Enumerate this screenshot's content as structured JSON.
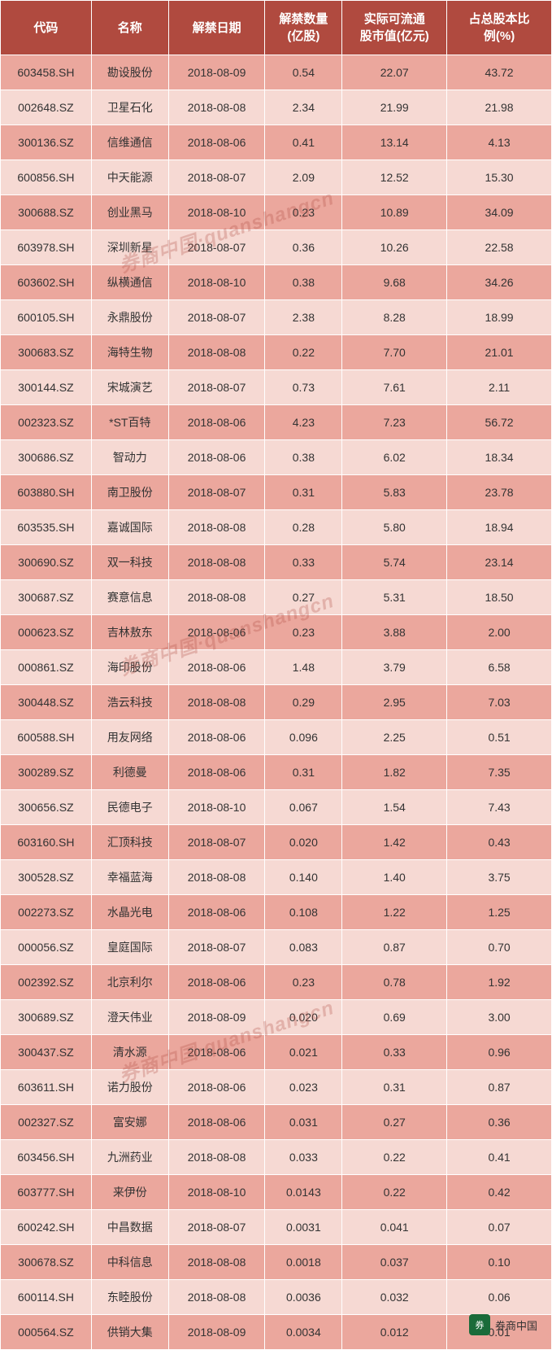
{
  "table": {
    "header_bg": "#b04a3f",
    "header_color": "#ffffff",
    "row_dark_bg": "#eba79d",
    "row_light_bg": "#f6d9d3",
    "columns": [
      {
        "key": "code",
        "label": "代码",
        "width": "16.5%"
      },
      {
        "key": "name",
        "label": "名称",
        "width": "14%"
      },
      {
        "key": "date",
        "label": "解禁日期",
        "width": "17.5%"
      },
      {
        "key": "qty",
        "label": "解禁数量\n(亿股)",
        "width": "14%"
      },
      {
        "key": "value",
        "label": "实际可流通\n股市值(亿元)",
        "width": "19%"
      },
      {
        "key": "pct",
        "label": "占总股本比\n例(%)",
        "width": "19%"
      }
    ],
    "rows": [
      {
        "code": "603458.SH",
        "name": "勘设股份",
        "date": "2018-08-09",
        "qty": "0.54",
        "value": "22.07",
        "pct": "43.72"
      },
      {
        "code": "002648.SZ",
        "name": "卫星石化",
        "date": "2018-08-08",
        "qty": "2.34",
        "value": "21.99",
        "pct": "21.98"
      },
      {
        "code": "300136.SZ",
        "name": "信维通信",
        "date": "2018-08-06",
        "qty": "0.41",
        "value": "13.14",
        "pct": "4.13"
      },
      {
        "code": "600856.SH",
        "name": "中天能源",
        "date": "2018-08-07",
        "qty": "2.09",
        "value": "12.52",
        "pct": "15.30"
      },
      {
        "code": "300688.SZ",
        "name": "创业黑马",
        "date": "2018-08-10",
        "qty": "0.23",
        "value": "10.89",
        "pct": "34.09"
      },
      {
        "code": "603978.SH",
        "name": "深圳新星",
        "date": "2018-08-07",
        "qty": "0.36",
        "value": "10.26",
        "pct": "22.58"
      },
      {
        "code": "603602.SH",
        "name": "纵横通信",
        "date": "2018-08-10",
        "qty": "0.38",
        "value": "9.68",
        "pct": "34.26"
      },
      {
        "code": "600105.SH",
        "name": "永鼎股份",
        "date": "2018-08-07",
        "qty": "2.38",
        "value": "8.28",
        "pct": "18.99"
      },
      {
        "code": "300683.SZ",
        "name": "海特生物",
        "date": "2018-08-08",
        "qty": "0.22",
        "value": "7.70",
        "pct": "21.01"
      },
      {
        "code": "300144.SZ",
        "name": "宋城演艺",
        "date": "2018-08-07",
        "qty": "0.73",
        "value": "7.61",
        "pct": "2.11"
      },
      {
        "code": "002323.SZ",
        "name": "*ST百特",
        "date": "2018-08-06",
        "qty": "4.23",
        "value": "7.23",
        "pct": "56.72"
      },
      {
        "code": "300686.SZ",
        "name": "智动力",
        "date": "2018-08-06",
        "qty": "0.38",
        "value": "6.02",
        "pct": "18.34"
      },
      {
        "code": "603880.SH",
        "name": "南卫股份",
        "date": "2018-08-07",
        "qty": "0.31",
        "value": "5.83",
        "pct": "23.78"
      },
      {
        "code": "603535.SH",
        "name": "嘉诚国际",
        "date": "2018-08-08",
        "qty": "0.28",
        "value": "5.80",
        "pct": "18.94"
      },
      {
        "code": "300690.SZ",
        "name": "双一科技",
        "date": "2018-08-08",
        "qty": "0.33",
        "value": "5.74",
        "pct": "23.14"
      },
      {
        "code": "300687.SZ",
        "name": "赛意信息",
        "date": "2018-08-08",
        "qty": "0.27",
        "value": "5.31",
        "pct": "18.50"
      },
      {
        "code": "000623.SZ",
        "name": "吉林敖东",
        "date": "2018-08-06",
        "qty": "0.23",
        "value": "3.88",
        "pct": "2.00"
      },
      {
        "code": "000861.SZ",
        "name": "海印股份",
        "date": "2018-08-06",
        "qty": "1.48",
        "value": "3.79",
        "pct": "6.58"
      },
      {
        "code": "300448.SZ",
        "name": "浩云科技",
        "date": "2018-08-08",
        "qty": "0.29",
        "value": "2.95",
        "pct": "7.03"
      },
      {
        "code": "600588.SH",
        "name": "用友网络",
        "date": "2018-08-06",
        "qty": "0.096",
        "value": "2.25",
        "pct": "0.51"
      },
      {
        "code": "300289.SZ",
        "name": "利德曼",
        "date": "2018-08-06",
        "qty": "0.31",
        "value": "1.82",
        "pct": "7.35"
      },
      {
        "code": "300656.SZ",
        "name": "民德电子",
        "date": "2018-08-10",
        "qty": "0.067",
        "value": "1.54",
        "pct": "7.43"
      },
      {
        "code": "603160.SH",
        "name": "汇顶科技",
        "date": "2018-08-07",
        "qty": "0.020",
        "value": "1.42",
        "pct": "0.43"
      },
      {
        "code": "300528.SZ",
        "name": "幸福蓝海",
        "date": "2018-08-08",
        "qty": "0.140",
        "value": "1.40",
        "pct": "3.75"
      },
      {
        "code": "002273.SZ",
        "name": "水晶光电",
        "date": "2018-08-06",
        "qty": "0.108",
        "value": "1.22",
        "pct": "1.25"
      },
      {
        "code": "000056.SZ",
        "name": "皇庭国际",
        "date": "2018-08-07",
        "qty": "0.083",
        "value": "0.87",
        "pct": "0.70"
      },
      {
        "code": "002392.SZ",
        "name": "北京利尔",
        "date": "2018-08-06",
        "qty": "0.23",
        "value": "0.78",
        "pct": "1.92"
      },
      {
        "code": "300689.SZ",
        "name": "澄天伟业",
        "date": "2018-08-09",
        "qty": "0.020",
        "value": "0.69",
        "pct": "3.00"
      },
      {
        "code": "300437.SZ",
        "name": "清水源",
        "date": "2018-08-06",
        "qty": "0.021",
        "value": "0.33",
        "pct": "0.96"
      },
      {
        "code": "603611.SH",
        "name": "诺力股份",
        "date": "2018-08-06",
        "qty": "0.023",
        "value": "0.31",
        "pct": "0.87"
      },
      {
        "code": "002327.SZ",
        "name": "富安娜",
        "date": "2018-08-06",
        "qty": "0.031",
        "value": "0.27",
        "pct": "0.36"
      },
      {
        "code": "603456.SH",
        "name": "九洲药业",
        "date": "2018-08-08",
        "qty": "0.033",
        "value": "0.22",
        "pct": "0.41"
      },
      {
        "code": "603777.SH",
        "name": "来伊份",
        "date": "2018-08-10",
        "qty": "0.0143",
        "value": "0.22",
        "pct": "0.42"
      },
      {
        "code": "600242.SH",
        "name": "中昌数据",
        "date": "2018-08-07",
        "qty": "0.0031",
        "value": "0.041",
        "pct": "0.07"
      },
      {
        "code": "300678.SZ",
        "name": "中科信息",
        "date": "2018-08-08",
        "qty": "0.0018",
        "value": "0.037",
        "pct": "0.10"
      },
      {
        "code": "600114.SH",
        "name": "东睦股份",
        "date": "2018-08-08",
        "qty": "0.0036",
        "value": "0.032",
        "pct": "0.06"
      },
      {
        "code": "000564.SZ",
        "name": "供销大集",
        "date": "2018-08-09",
        "qty": "0.0034",
        "value": "0.012",
        "pct": "0.01"
      }
    ]
  },
  "watermark": {
    "text": "券商中国·quanshangcn",
    "color": "rgba(176, 74, 63, 0.28)"
  },
  "footer": {
    "icon_label": "券",
    "brand_label": "券商中国"
  }
}
